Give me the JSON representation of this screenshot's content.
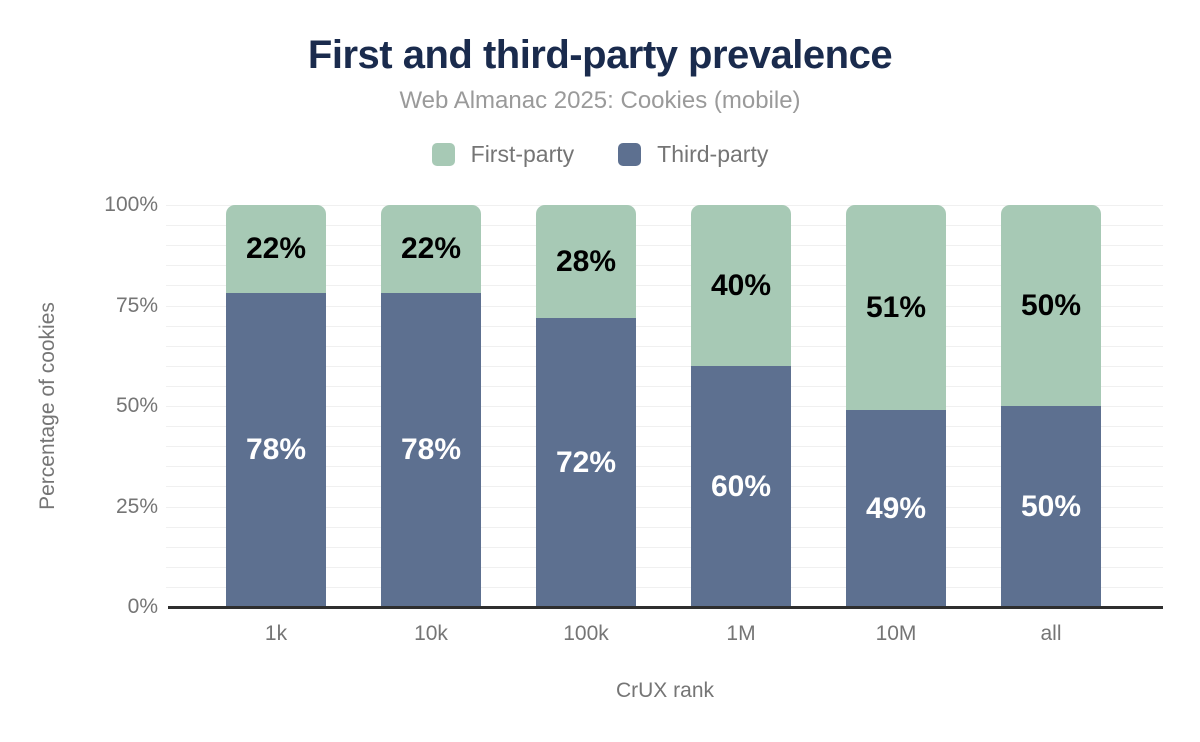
{
  "header": {
    "title": "First and third-party prevalence",
    "subtitle": "Web Almanac 2025: Cookies (mobile)"
  },
  "legend": {
    "items": [
      {
        "label": "First-party",
        "color": "#a7c9b5"
      },
      {
        "label": "Third-party",
        "color": "#5d7090"
      }
    ]
  },
  "chart_data": {
    "type": "bar",
    "stacked": true,
    "title": "First and third-party prevalence",
    "subtitle": "Web Almanac 2025: Cookies (mobile)",
    "categories": [
      "1k",
      "10k",
      "100k",
      "1M",
      "10M",
      "all"
    ],
    "series": [
      {
        "name": "First-party",
        "color": "#a7c9b5",
        "label_color": "#000000",
        "values": [
          22,
          22,
          28,
          40,
          51,
          50
        ],
        "labels": [
          "22%",
          "22%",
          "28%",
          "40%",
          "51%",
          "50%"
        ]
      },
      {
        "name": "Third-party",
        "color": "#5d7090",
        "label_color": "#ffffff",
        "values": [
          78,
          78,
          72,
          60,
          49,
          50
        ],
        "labels": [
          "78%",
          "78%",
          "72%",
          "60%",
          "49%",
          "50%"
        ]
      }
    ],
    "xlabel": "CrUX rank",
    "ylabel": "Percentage of cookies",
    "ylim": [
      0,
      100
    ],
    "yticks": [
      {
        "value": 0,
        "label": "0%"
      },
      {
        "value": 25,
        "label": "25%"
      },
      {
        "value": 50,
        "label": "50%"
      },
      {
        "value": 75,
        "label": "75%"
      },
      {
        "value": 100,
        "label": "100%"
      }
    ],
    "grid": {
      "show": true,
      "interval": 5,
      "color": "#f0f0f0"
    },
    "legend_position": "top"
  },
  "colors": {
    "title": "#1a2b4d",
    "subtitle": "#9a9a9a",
    "axis_text": "#757575",
    "axis_line": "#2e2e2e",
    "background": "#ffffff"
  }
}
